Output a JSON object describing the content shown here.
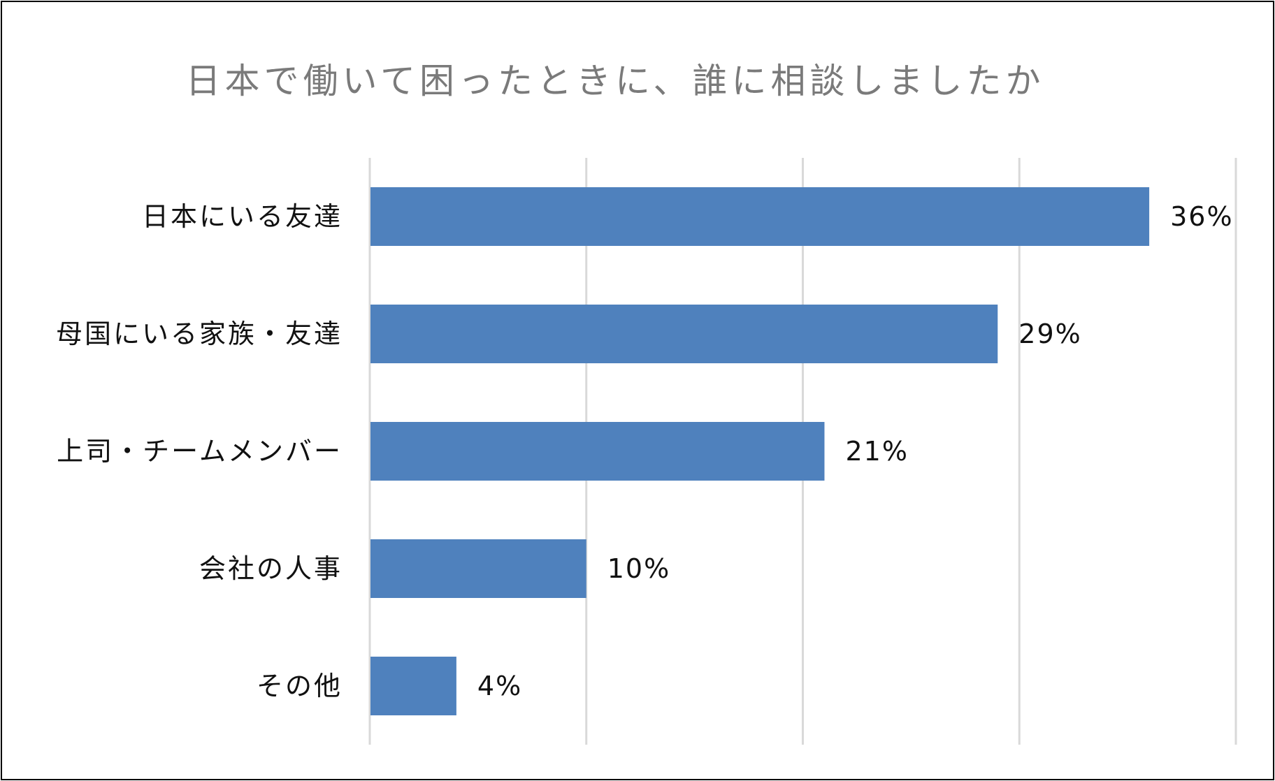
{
  "chart_data": {
    "type": "bar",
    "orientation": "horizontal",
    "title": "日本で働いて困ったときに、誰に相談しましたか",
    "categories": [
      "日本にいる友達",
      "母国にいる家族・友達",
      "上司・チームメンバー",
      "会社の人事",
      "その他"
    ],
    "values": [
      36,
      29,
      21,
      10,
      4
    ],
    "data_labels": [
      "36%",
      "29%",
      "21%",
      "10%",
      "4%"
    ],
    "unit": "%",
    "xlim": [
      0,
      40
    ],
    "grid_step": 10,
    "grid": true,
    "legend": false,
    "bar_color": "#4f81bd",
    "grid_color": "#d9d9d9",
    "title_color": "#7a7a7a"
  }
}
